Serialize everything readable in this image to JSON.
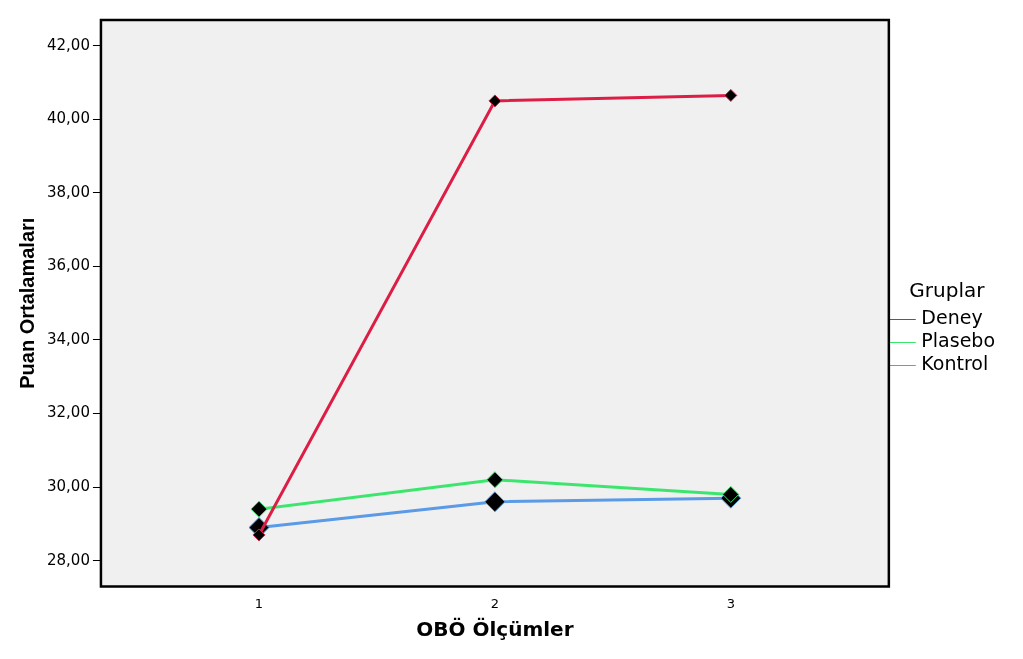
{
  "chart_data": {
    "type": "line",
    "xlabel": "OBÖ Ölçümler",
    "ylabel": "Puan Ortalamaları",
    "legend_title": "Gruplar",
    "legend": "right",
    "marker": "diamond",
    "grid": false,
    "x": [
      1,
      2,
      3
    ],
    "xlim": [
      0.33,
      3.67
    ],
    "xticks": [
      1,
      2,
      3
    ],
    "ylim": [
      27.3,
      42.7
    ],
    "yticks": [
      {
        "value": 28,
        "label": "28,00"
      },
      {
        "value": 30,
        "label": "30,00"
      },
      {
        "value": 32,
        "label": "32,00"
      },
      {
        "value": 34,
        "label": "34,00"
      },
      {
        "value": 36,
        "label": "36,00"
      },
      {
        "value": 38,
        "label": "38,00"
      },
      {
        "value": 40,
        "label": "40,00"
      },
      {
        "value": 42,
        "label": "42,00"
      }
    ],
    "series": [
      {
        "name": "Deney",
        "color": "#dc1e46",
        "values": [
          28.7,
          40.5,
          40.65
        ]
      },
      {
        "name": "Plasebo",
        "color": "#3ce66e",
        "values": [
          29.4,
          30.2,
          29.8
        ]
      },
      {
        "name": "Kontrol",
        "color": "#5a9ae6",
        "values": [
          28.9,
          29.6,
          29.7
        ]
      }
    ]
  }
}
